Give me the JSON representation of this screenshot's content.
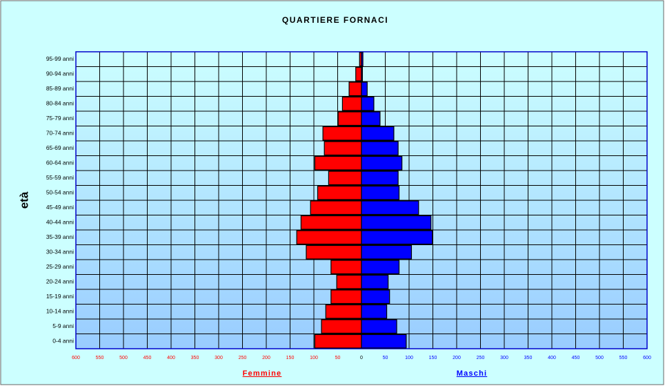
{
  "chart_data": {
    "type": "pyramid",
    "title": "QUARTIERE FORNACI",
    "y_label": "età",
    "categories": [
      "0-4 anni",
      "5-9 anni",
      "10-14 anni",
      "15-19 anni",
      "20-24 anni",
      "25-29 anni",
      "30-34 anni",
      "35-39 anni",
      "40-44 anni",
      "45-49 anni",
      "50-54 anni",
      "55-59 anni",
      "60-64 anni",
      "65-69 anni",
      "70-74 anni",
      "75-79 anni",
      "80-84 anni",
      "85-89 anni",
      "90-94 anni",
      "95-99 anni"
    ],
    "series": [
      {
        "name": "Femmine",
        "color": "#ff0000",
        "side": "left",
        "values": [
          98,
          84,
          75,
          64,
          52,
          64,
          116,
          136,
          127,
          107,
          92,
          69,
          98,
          78,
          81,
          49,
          40,
          26,
          12,
          4
        ]
      },
      {
        "name": "Maschi",
        "color": "#0000ff",
        "side": "right",
        "values": [
          94,
          74,
          53,
          59,
          56,
          79,
          105,
          149,
          146,
          120,
          79,
          77,
          85,
          77,
          68,
          39,
          26,
          12,
          2,
          3
        ]
      }
    ],
    "xlim": [
      -600,
      600
    ],
    "xticks": [
      {
        "value": -600,
        "label": "600"
      },
      {
        "value": -550,
        "label": "550"
      },
      {
        "value": -500,
        "label": "500"
      },
      {
        "value": -450,
        "label": "450"
      },
      {
        "value": -400,
        "label": "400"
      },
      {
        "value": -350,
        "label": "350"
      },
      {
        "value": -300,
        "label": "300"
      },
      {
        "value": -250,
        "label": "250"
      },
      {
        "value": -200,
        "label": "200"
      },
      {
        "value": -150,
        "label": "150"
      },
      {
        "value": -100,
        "label": "100"
      },
      {
        "value": -50,
        "label": "50"
      },
      0,
      50,
      100,
      150,
      200,
      250,
      300,
      350,
      400,
      450,
      500,
      550,
      600
    ],
    "grid": true
  }
}
